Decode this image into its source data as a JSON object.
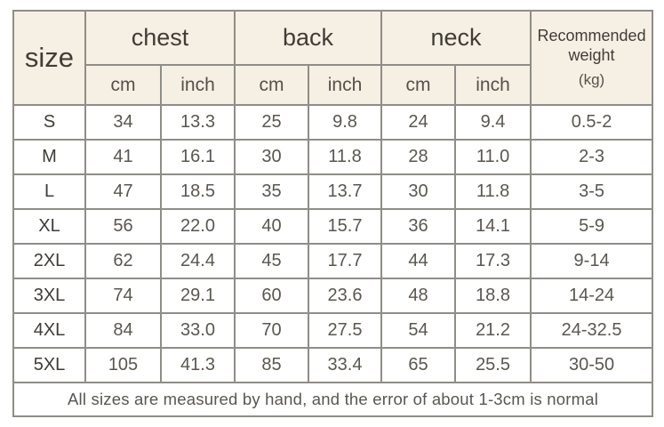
{
  "colors": {
    "header_background": "#f6f0e4",
    "table_border": "#8f8d87",
    "header_text": "#403c37",
    "data_text": "#5a5650",
    "page_background": "#ffffff"
  },
  "table": {
    "header": {
      "size_label": "size",
      "groups": [
        {
          "label": "chest"
        },
        {
          "label": "back"
        },
        {
          "label": "neck"
        }
      ],
      "weight": {
        "line1": "Recommended",
        "line2": "weight",
        "line3": "(kg)"
      },
      "unit_cm": "cm",
      "unit_inch": "inch"
    },
    "rows": [
      {
        "size": "S",
        "chest_cm": "34",
        "chest_inch": "13.3",
        "back_cm": "25",
        "back_inch": "9.8",
        "neck_cm": "24",
        "neck_inch": "9.4",
        "weight": "0.5-2"
      },
      {
        "size": "M",
        "chest_cm": "41",
        "chest_inch": "16.1",
        "back_cm": "30",
        "back_inch": "11.8",
        "neck_cm": "28",
        "neck_inch": "11.0",
        "weight": "2-3"
      },
      {
        "size": "L",
        "chest_cm": "47",
        "chest_inch": "18.5",
        "back_cm": "35",
        "back_inch": "13.7",
        "neck_cm": "30",
        "neck_inch": "11.8",
        "weight": "3-5"
      },
      {
        "size": "XL",
        "chest_cm": "56",
        "chest_inch": "22.0",
        "back_cm": "40",
        "back_inch": "15.7",
        "neck_cm": "36",
        "neck_inch": "14.1",
        "weight": "5-9"
      },
      {
        "size": "2XL",
        "chest_cm": "62",
        "chest_inch": "24.4",
        "back_cm": "45",
        "back_inch": "17.7",
        "neck_cm": "44",
        "neck_inch": "17.3",
        "weight": "9-14"
      },
      {
        "size": "3XL",
        "chest_cm": "74",
        "chest_inch": "29.1",
        "back_cm": "60",
        "back_inch": "23.6",
        "neck_cm": "48",
        "neck_inch": "18.8",
        "weight": "14-24"
      },
      {
        "size": "4XL",
        "chest_cm": "84",
        "chest_inch": "33.0",
        "back_cm": "70",
        "back_inch": "27.5",
        "neck_cm": "54",
        "neck_inch": "21.2",
        "weight": "24-32.5"
      },
      {
        "size": "5XL",
        "chest_cm": "105",
        "chest_inch": "41.3",
        "back_cm": "85",
        "back_inch": "33.4",
        "neck_cm": "65",
        "neck_inch": "25.5",
        "weight": "30-50"
      }
    ],
    "footer_note": "All sizes are measured by hand, and the error of about 1-3cm is normal"
  },
  "chart_data": {
    "type": "table",
    "title": "Pet apparel size chart",
    "columns": [
      "size",
      "chest cm",
      "chest inch",
      "back cm",
      "back inch",
      "neck cm",
      "neck inch",
      "Recommended weight (kg)"
    ],
    "rows": [
      [
        "S",
        34,
        13.3,
        25,
        9.8,
        24,
        9.4,
        "0.5-2"
      ],
      [
        "M",
        41,
        16.1,
        30,
        11.8,
        28,
        11.0,
        "2-3"
      ],
      [
        "L",
        47,
        18.5,
        35,
        13.7,
        30,
        11.8,
        "3-5"
      ],
      [
        "XL",
        56,
        22.0,
        40,
        15.7,
        36,
        14.1,
        "5-9"
      ],
      [
        "2XL",
        62,
        24.4,
        45,
        17.7,
        44,
        17.3,
        "9-14"
      ],
      [
        "3XL",
        74,
        29.1,
        60,
        23.6,
        48,
        18.8,
        "14-24"
      ],
      [
        "4XL",
        84,
        33.0,
        70,
        27.5,
        54,
        21.2,
        "24-32.5"
      ],
      [
        "5XL",
        105,
        41.3,
        85,
        33.4,
        65,
        25.5,
        "30-50"
      ]
    ]
  }
}
